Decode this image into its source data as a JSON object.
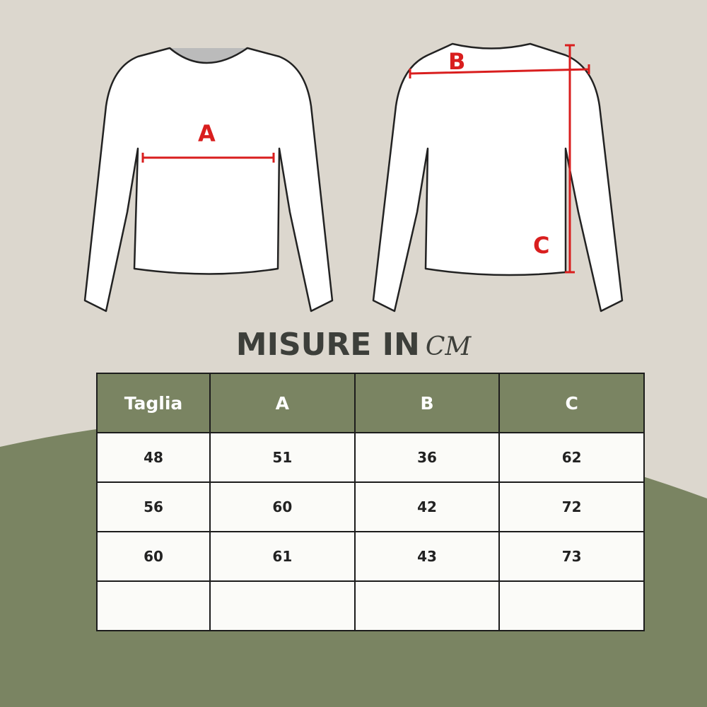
{
  "diagram": {
    "labels": [
      "A",
      "B",
      "C"
    ],
    "measure_color": "#d91e1e"
  },
  "title": {
    "main": "MISURE IN",
    "unit": "CM"
  },
  "table": {
    "headers": [
      "Taglia",
      "A",
      "B",
      "C"
    ],
    "rows": [
      [
        "48",
        "51",
        "36",
        "62"
      ],
      [
        "56",
        "60",
        "42",
        "72"
      ],
      [
        "60",
        "61",
        "43",
        "73"
      ],
      [
        "",
        "",
        "",
        ""
      ]
    ]
  },
  "colors": {
    "background": "#dcd7ce",
    "green": "#7a8462"
  }
}
